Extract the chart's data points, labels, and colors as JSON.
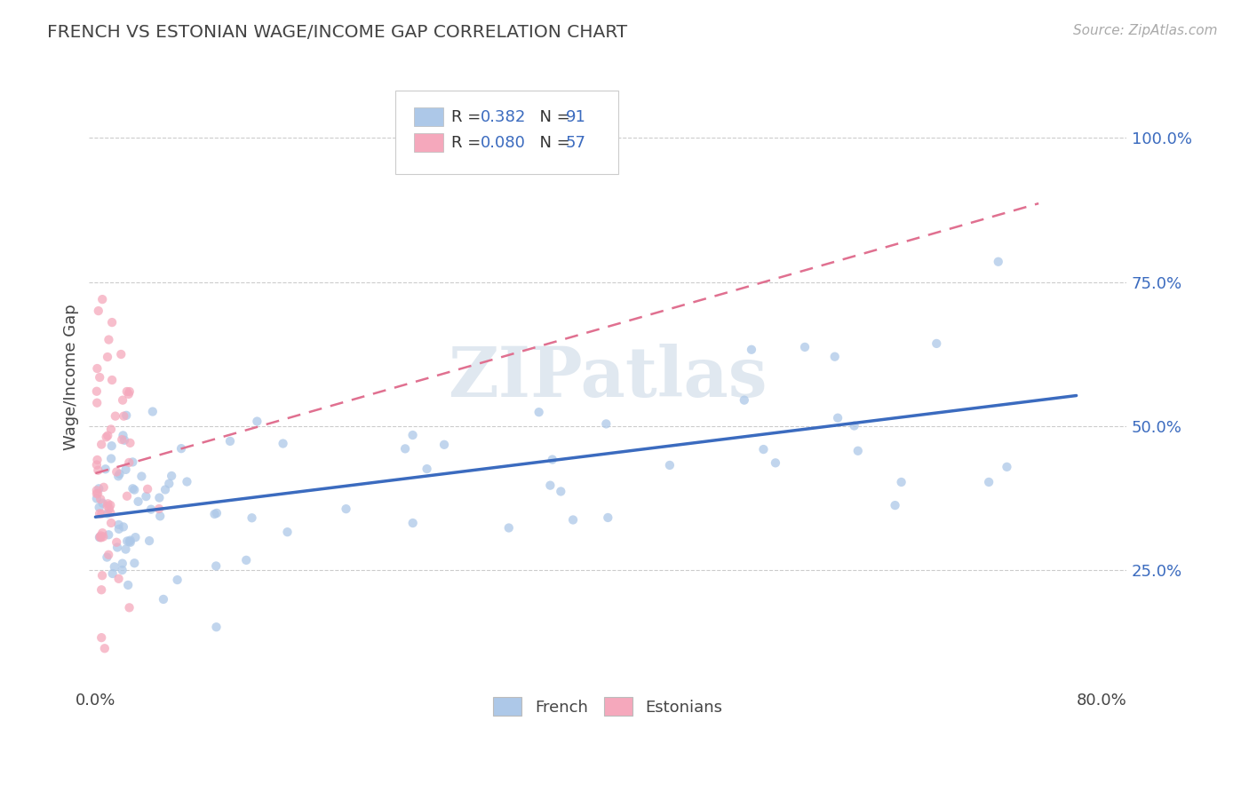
{
  "title": "FRENCH VS ESTONIAN WAGE/INCOME GAP CORRELATION CHART",
  "source": "Source: ZipAtlas.com",
  "ylabel": "Wage/Income Gap",
  "right_yticks": [
    "25.0%",
    "50.0%",
    "75.0%",
    "100.0%"
  ],
  "right_ytick_vals": [
    0.25,
    0.5,
    0.75,
    1.0
  ],
  "legend_french_R": "0.382",
  "legend_french_N": "91",
  "legend_estonian_R": "0.080",
  "legend_estonian_N": "57",
  "french_color": "#adc8e8",
  "estonian_color": "#f5a8bc",
  "french_line_color": "#3b6bbf",
  "estonian_line_color": "#e07090",
  "watermark": "ZIPatlas",
  "xlim": [
    -0.005,
    0.82
  ],
  "ylim": [
    0.05,
    1.12
  ],
  "grid_ytick_vals": [
    0.25,
    0.5,
    0.75,
    1.0
  ]
}
